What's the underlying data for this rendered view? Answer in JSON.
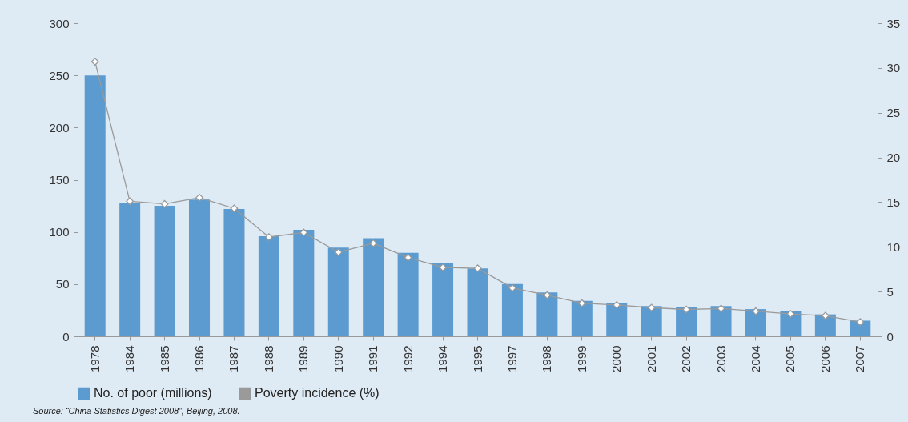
{
  "chart_data": {
    "type": "bar",
    "categories": [
      "1978",
      "1984",
      "1985",
      "1986",
      "1987",
      "1988",
      "1989",
      "1990",
      "1991",
      "1992",
      "1994",
      "1995",
      "1997",
      "1998",
      "1999",
      "2000",
      "2001",
      "2002",
      "2003",
      "2004",
      "2005",
      "2006",
      "2007"
    ],
    "series": [
      {
        "name": "No. of poor (millions)",
        "color": "#5b9bd0",
        "values": [
          250,
          128,
          125,
          131,
          122,
          96,
          102,
          85,
          94,
          80,
          70,
          65,
          50,
          42,
          34,
          32,
          29,
          28,
          29,
          26,
          24,
          21,
          15
        ]
      },
      {
        "name": "Poverty incidence (%)",
        "type": "line",
        "axis": "y2",
        "color": "#9a9a9a",
        "marker": "diamond",
        "values": [
          30.7,
          15.1,
          14.8,
          15.5,
          14.3,
          11.1,
          11.6,
          9.4,
          10.4,
          8.8,
          7.7,
          7.6,
          5.4,
          4.6,
          3.7,
          3.5,
          3.2,
          3.0,
          3.1,
          2.8,
          2.5,
          2.3,
          1.6
        ]
      }
    ],
    "ylim": [
      0,
      300
    ],
    "yticks": [
      0,
      50,
      100,
      150,
      200,
      250,
      300
    ],
    "y2lim": [
      0,
      35
    ],
    "y2ticks": [
      0,
      5,
      10,
      15,
      20,
      25,
      30,
      35
    ],
    "legend": "bottom",
    "grid": false,
    "annotations": [
      "Source: “China Statistics Digest 2008”, Beijing, 2008."
    ]
  }
}
